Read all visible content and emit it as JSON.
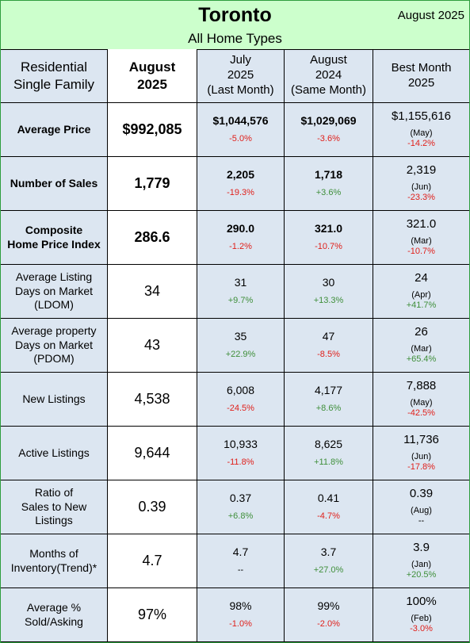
{
  "header": {
    "title": "Toronto",
    "subtitle": "All Home Types",
    "date": "August 2025"
  },
  "columns": [
    [
      "Residential",
      "Single Family"
    ],
    [
      "August",
      "2025"
    ],
    [
      "July",
      "2025",
      "(Last Month)"
    ],
    [
      "August",
      "2024",
      "(Same Month)"
    ],
    [
      "Best Month",
      "2025"
    ]
  ],
  "rows": [
    {
      "label": [
        "Average Price"
      ],
      "bold": true,
      "current": "$992,085",
      "last_month": {
        "value": "$1,044,576",
        "change": "-5.0%"
      },
      "same_month": {
        "value": "$1,029,069",
        "change": "-3.6%"
      },
      "best": {
        "value": "$1,155,616",
        "month": "(May)",
        "change": "-14.2%"
      }
    },
    {
      "label": [
        "Number of Sales"
      ],
      "bold": true,
      "current": "1,779",
      "last_month": {
        "value": "2,205",
        "change": "-19.3%"
      },
      "same_month": {
        "value": "1,718",
        "change": "+3.6%"
      },
      "best": {
        "value": "2,319",
        "month": "(Jun)",
        "change": "-23.3%"
      }
    },
    {
      "label": [
        "Composite",
        "Home Price Index"
      ],
      "bold": true,
      "current": "286.6",
      "last_month": {
        "value": "290.0",
        "change": "-1.2%"
      },
      "same_month": {
        "value": "321.0",
        "change": "-10.7%"
      },
      "best": {
        "value": "321.0",
        "month": "(Mar)",
        "change": "-10.7%"
      }
    },
    {
      "label": [
        "Average Listing",
        "Days on Market",
        "(LDOM)"
      ],
      "bold": false,
      "current": "34",
      "last_month": {
        "value": "31",
        "change": "+9.7%"
      },
      "same_month": {
        "value": "30",
        "change": "+13.3%"
      },
      "best": {
        "value": "24",
        "month": "(Apr)",
        "change": "+41.7%"
      }
    },
    {
      "label": [
        "Average property",
        "Days on Market",
        "(PDOM)"
      ],
      "bold": false,
      "current": "43",
      "last_month": {
        "value": "35",
        "change": "+22.9%"
      },
      "same_month": {
        "value": "47",
        "change": "-8.5%"
      },
      "best": {
        "value": "26",
        "month": "(Mar)",
        "change": "+65.4%"
      }
    },
    {
      "label": [
        "New Listings"
      ],
      "bold": false,
      "current": "4,538",
      "last_month": {
        "value": "6,008",
        "change": "-24.5%"
      },
      "same_month": {
        "value": "4,177",
        "change": "+8.6%"
      },
      "best": {
        "value": "7,888",
        "month": "(May)",
        "change": "-42.5%"
      }
    },
    {
      "label": [
        "Active Listings"
      ],
      "bold": false,
      "current": "9,644",
      "last_month": {
        "value": "10,933",
        "change": "-11.8%"
      },
      "same_month": {
        "value": "8,625",
        "change": "+11.8%"
      },
      "best": {
        "value": "11,736",
        "month": "(Jun)",
        "change": "-17.8%"
      }
    },
    {
      "label": [
        "Ratio of",
        "Sales to New",
        "Listings"
      ],
      "bold": false,
      "current": "0.39",
      "last_month": {
        "value": "0.37",
        "change": "+6.8%"
      },
      "same_month": {
        "value": "0.41",
        "change": "-4.7%"
      },
      "best": {
        "value": "0.39",
        "month": "(Aug)",
        "change": "--"
      }
    },
    {
      "label": [
        "Months of",
        "Inventory(Trend)*"
      ],
      "bold": false,
      "current": "4.7",
      "last_month": {
        "value": "4.7",
        "change": "--"
      },
      "same_month": {
        "value": "3.7",
        "change": "+27.0%"
      },
      "best": {
        "value": "3.9",
        "month": "(Jan)",
        "change": "+20.5%"
      }
    },
    {
      "label": [
        "Average %",
        "Sold/Asking"
      ],
      "bold": false,
      "current": "97%",
      "last_month": {
        "value": "98%",
        "change": "-1.0%"
      },
      "same_month": {
        "value": "99%",
        "change": "-2.0%"
      },
      "best": {
        "value": "100%",
        "month": "(Feb)",
        "change": "-3.0%"
      }
    }
  ]
}
